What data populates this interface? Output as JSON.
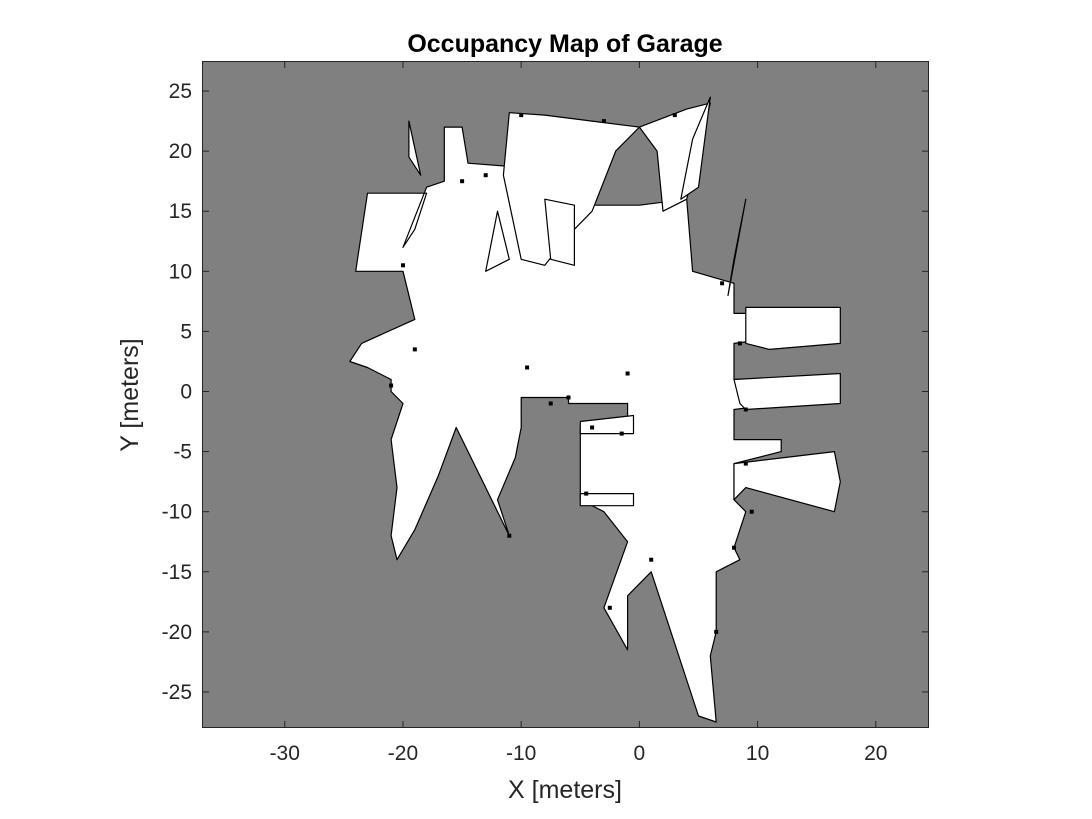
{
  "chart_data": {
    "type": "heatmap",
    "title": "Occupancy Map of Garage",
    "xlabel": "X [meters]",
    "ylabel": "Y [meters]",
    "xlim": [
      -37,
      24.5
    ],
    "ylim": [
      -28,
      27.5
    ],
    "xticks": [
      -30,
      -20,
      -10,
      0,
      10,
      20
    ],
    "yticks": [
      25,
      20,
      15,
      10,
      5,
      0,
      -5,
      -10,
      -15,
      -20,
      -25
    ],
    "xtick_labels": [
      "-30",
      "-20",
      "-10",
      "0",
      "10",
      "20"
    ],
    "ytick_labels": [
      "25",
      "20",
      "15",
      "10",
      "5",
      "0",
      "-5",
      "-10",
      "-15",
      "-20",
      "-25"
    ],
    "grid": false,
    "colors": {
      "unknown": "#808080",
      "free": "#ffffff",
      "occupied": "#000000"
    },
    "free_regions": [
      [
        [
          -24,
          10
        ],
        [
          -23,
          16.5
        ],
        [
          -18,
          16.5
        ],
        [
          -19,
          13.5
        ],
        [
          -20,
          12
        ],
        [
          -18,
          17
        ],
        [
          -16.5,
          17.5
        ],
        [
          -16.5,
          22
        ],
        [
          -15,
          22
        ],
        [
          -14.5,
          19
        ],
        [
          -8,
          18.5
        ],
        [
          -6,
          16
        ],
        [
          -4,
          15.5
        ],
        [
          0,
          15.5
        ],
        [
          4,
          16
        ],
        [
          4.5,
          10
        ],
        [
          8,
          9
        ],
        [
          8,
          6.5
        ],
        [
          12,
          6.5
        ],
        [
          12,
          4.5
        ],
        [
          8,
          4
        ],
        [
          8,
          1
        ],
        [
          12,
          1
        ],
        [
          12,
          -1
        ],
        [
          8,
          -1.5
        ],
        [
          8,
          -4
        ],
        [
          12,
          -4
        ],
        [
          12,
          -5
        ],
        [
          8,
          -6
        ],
        [
          8,
          -9
        ],
        [
          9,
          -10
        ],
        [
          8,
          -13
        ],
        [
          8.5,
          -14
        ],
        [
          6.5,
          -15
        ],
        [
          6.5,
          -20
        ],
        [
          6,
          -22
        ],
        [
          6.5,
          -27.5
        ],
        [
          5,
          -27
        ],
        [
          1,
          -15
        ],
        [
          -1,
          -17
        ],
        [
          -1,
          -21.5
        ],
        [
          -3,
          -18
        ],
        [
          -1,
          -12.5
        ],
        [
          -3,
          -10
        ],
        [
          -5,
          -9
        ],
        [
          -5,
          -3
        ],
        [
          -1,
          -2.5
        ],
        [
          -1,
          -1
        ],
        [
          -6,
          -1
        ],
        [
          -6,
          -0.5
        ],
        [
          -10,
          -0.5
        ],
        [
          -10,
          -3
        ],
        [
          -10.5,
          -5.5
        ],
        [
          -12,
          -9
        ],
        [
          -11,
          -12
        ],
        [
          -15.5,
          -3
        ],
        [
          -17,
          -7
        ],
        [
          -19,
          -11.5
        ],
        [
          -20.5,
          -14
        ],
        [
          -21,
          -12
        ],
        [
          -20.5,
          -8
        ],
        [
          -21,
          -4
        ],
        [
          -20,
          -1
        ],
        [
          -21,
          0
        ],
        [
          -21,
          1
        ],
        [
          -23,
          2
        ],
        [
          -24.5,
          2.5
        ],
        [
          -23.5,
          4
        ],
        [
          -19,
          6
        ],
        [
          -20,
          10
        ]
      ],
      [
        [
          -11,
          23.2
        ],
        [
          -8,
          23
        ],
        [
          -4,
          22.5
        ],
        [
          0,
          22
        ],
        [
          4,
          23.5
        ],
        [
          6,
          24
        ],
        [
          4,
          16
        ],
        [
          2,
          15
        ],
        [
          1.5,
          20
        ],
        [
          0,
          22
        ],
        [
          -2,
          20
        ],
        [
          -4,
          15
        ],
        [
          -6,
          13
        ],
        [
          -8,
          10.5
        ],
        [
          -10,
          11
        ],
        [
          -11.5,
          18
        ]
      ],
      [
        [
          -8,
          16
        ],
        [
          -7.5,
          11
        ],
        [
          -5.5,
          10.5
        ],
        [
          -5.5,
          15.5
        ]
      ],
      [
        [
          -13,
          10
        ],
        [
          -12,
          15
        ],
        [
          -11,
          11
        ]
      ],
      [
        [
          -19.5,
          22.5
        ],
        [
          -18.5,
          18
        ],
        [
          -19.5,
          19.5
        ]
      ],
      [
        [
          6,
          24.5
        ],
        [
          4.5,
          21
        ],
        [
          3.5,
          16
        ],
        [
          5,
          17
        ]
      ],
      [
        [
          9,
          16
        ],
        [
          7.5,
          8
        ],
        [
          8,
          11
        ]
      ],
      [
        [
          9,
          7
        ],
        [
          17,
          7
        ],
        [
          17,
          4
        ],
        [
          11,
          3.5
        ],
        [
          9,
          4
        ]
      ],
      [
        [
          8,
          1
        ],
        [
          17,
          1.5
        ],
        [
          17,
          -1
        ],
        [
          9,
          -1.5
        ],
        [
          8.5,
          -1
        ]
      ],
      [
        [
          8,
          -6
        ],
        [
          16.5,
          -5
        ],
        [
          17,
          -7.5
        ],
        [
          16.5,
          -10
        ],
        [
          9,
          -8
        ],
        [
          8,
          -9
        ]
      ],
      [
        [
          -5,
          -9.5
        ],
        [
          -0.5,
          -9.5
        ],
        [
          -0.5,
          -8.5
        ],
        [
          -5,
          -8.5
        ]
      ],
      [
        [
          -5,
          -2.5
        ],
        [
          -0.5,
          -2
        ],
        [
          -0.5,
          -3.5
        ],
        [
          -5,
          -3.5
        ]
      ]
    ],
    "occupied_cells": [
      [
        -7.5,
        -1
      ],
      [
        -6,
        -0.5
      ],
      [
        -4,
        -3
      ],
      [
        -1.5,
        -3.5
      ],
      [
        -4.5,
        -8.5
      ],
      [
        -9.5,
        2
      ],
      [
        -1,
        1.5
      ],
      [
        -19,
        3.5
      ],
      [
        -21,
        0.5
      ],
      [
        -20,
        10.5
      ],
      [
        -15,
        17.5
      ],
      [
        -13,
        18
      ],
      [
        -10,
        23
      ],
      [
        -3,
        22.5
      ],
      [
        3,
        23
      ],
      [
        7,
        9
      ],
      [
        8.5,
        4
      ],
      [
        9,
        -1.5
      ],
      [
        9,
        -6
      ],
      [
        9.5,
        -10
      ],
      [
        8,
        -13
      ],
      [
        6.5,
        -20
      ],
      [
        1,
        -14
      ],
      [
        -2.5,
        -18
      ],
      [
        -11,
        -12
      ]
    ]
  }
}
